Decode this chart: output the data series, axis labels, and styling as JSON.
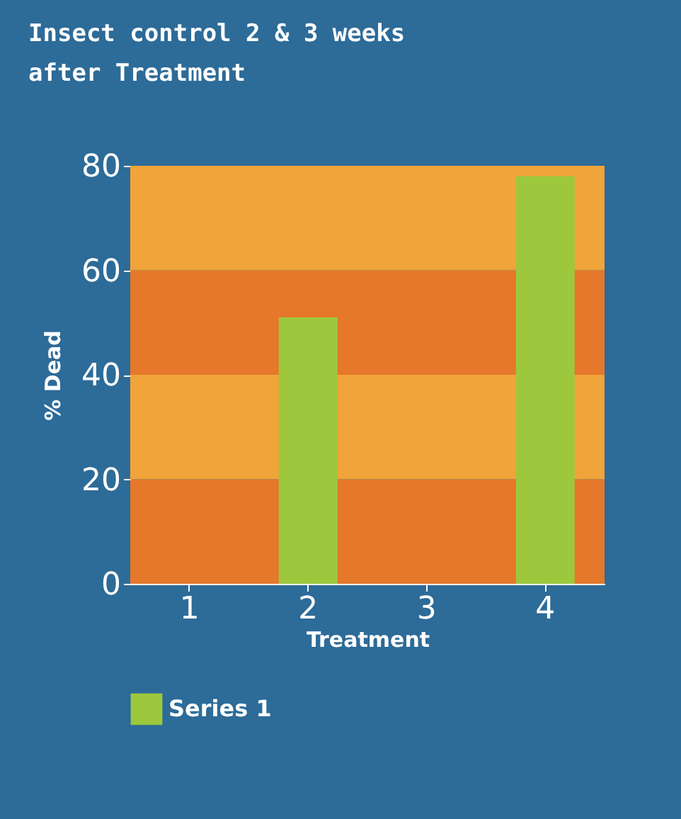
{
  "chart_data": {
    "type": "bar",
    "title": "Insect control 2 & 3 weeks after Treatment",
    "xlabel": "Treatment",
    "ylabel": "% Dead",
    "categories": [
      "1",
      "2",
      "3",
      "4"
    ],
    "series": [
      {
        "name": "Series 1",
        "color": "#9dc83e",
        "values": [
          null,
          51,
          null,
          78
        ]
      }
    ],
    "ylim": [
      0,
      80
    ],
    "yticks": [
      0,
      20,
      40,
      60,
      80
    ],
    "legend": "bottom",
    "bands": [
      {
        "axis": "y",
        "from": 0,
        "to": 20,
        "color": "#e5782a"
      },
      {
        "axis": "y",
        "from": 20,
        "to": 40,
        "color": "#f0a43a"
      },
      {
        "axis": "y",
        "from": 40,
        "to": 60,
        "color": "#e5782a"
      },
      {
        "axis": "y",
        "from": 60,
        "to": 80,
        "color": "#f0a43a"
      }
    ]
  }
}
